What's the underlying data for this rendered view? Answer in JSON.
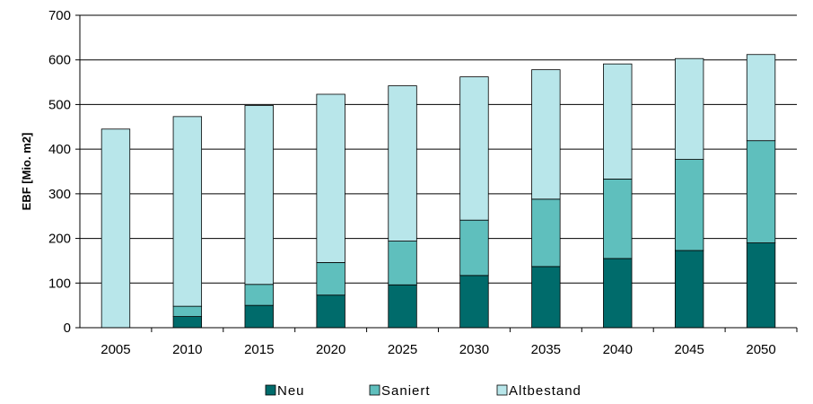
{
  "chart_data": {
    "type": "bar",
    "stacked": true,
    "categories": [
      "2005",
      "2010",
      "2015",
      "2020",
      "2025",
      "2030",
      "2035",
      "2040",
      "2045",
      "2050"
    ],
    "series": [
      {
        "name": "Neu",
        "color": "#006b6b",
        "values": [
          0,
          25,
          50,
          73,
          96,
          117,
          137,
          155,
          173,
          190
        ]
      },
      {
        "name": "Saniert",
        "color": "#5fbfbd",
        "values": [
          0,
          23,
          47,
          73,
          98,
          124,
          151,
          178,
          204,
          229
        ]
      },
      {
        "name": "Altbestand",
        "color": "#b8e6ea",
        "values": [
          445,
          425,
          401,
          377,
          348,
          321,
          290,
          258,
          226,
          193
        ]
      }
    ],
    "xlabel": "",
    "ylabel": "EBF [Mio. m2]",
    "ylim": [
      0,
      700
    ],
    "yticks": [
      0,
      100,
      200,
      300,
      400,
      500,
      600,
      700
    ],
    "grid": true,
    "legend_position": "bottom"
  }
}
